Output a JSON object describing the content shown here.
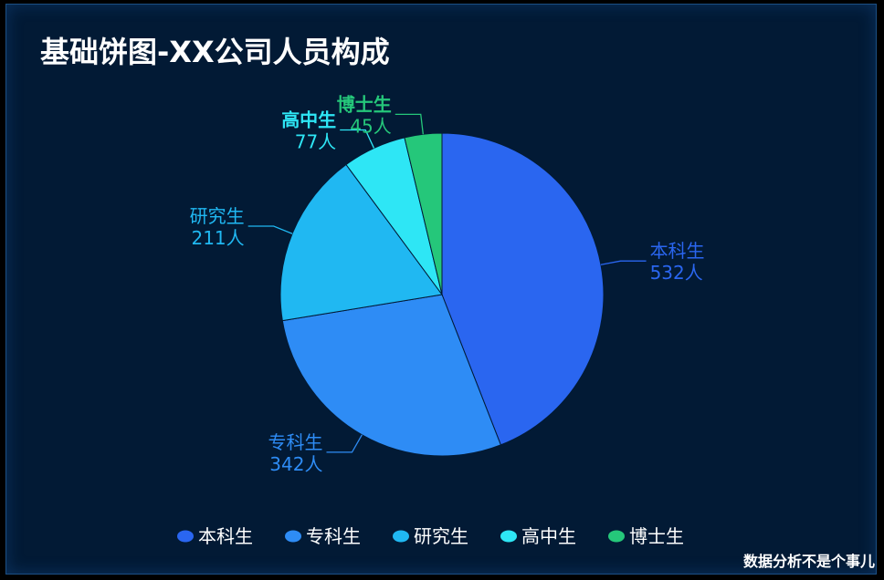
{
  "title": "基础饼图-XX公司人员构成",
  "watermark": "数据分析不是个事儿",
  "chart_data": {
    "type": "pie",
    "title": "基础饼图-XX公司人员构成",
    "unit": "人",
    "legend_position": "bottom",
    "slices": [
      {
        "name": "本科生",
        "value": 532,
        "color": "#2a66f0"
      },
      {
        "name": "专科生",
        "value": 342,
        "color": "#2e8cf5"
      },
      {
        "name": "研究生",
        "value": 211,
        "color": "#20b8f2"
      },
      {
        "name": "高中生",
        "value": 77,
        "color": "#2ee6f5"
      },
      {
        "name": "博士生",
        "value": 45,
        "color": "#25c77a"
      }
    ]
  },
  "colors": {
    "background": "#021a35",
    "title": "#ffffff",
    "legend_text": "#ffffff"
  }
}
